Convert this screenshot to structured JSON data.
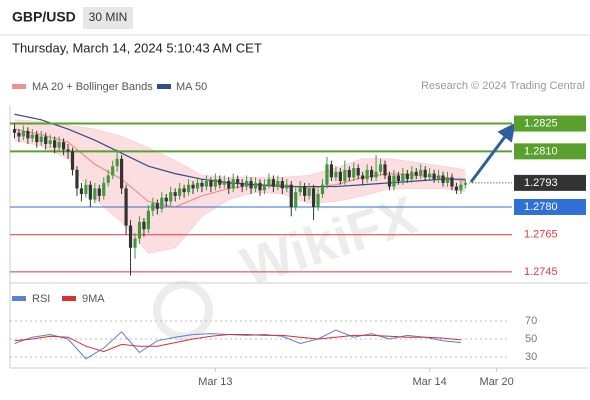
{
  "chart_data": {
    "type": "candlestick",
    "title": "GBP/USD",
    "timeframe": "30 MIN",
    "timestamp": "Thursday, March 14, 2024 5:10:43 AM CET",
    "source": "Research © 2024 Trading Central",
    "watermark": "WikiFX",
    "up_color": "#3d9a3d",
    "down_color": "#333333",
    "xlim": [
      -1,
      111
    ],
    "xticks": [
      {
        "value": 45,
        "label": "Mar 13"
      },
      {
        "value": 93,
        "label": "Mar 14"
      },
      {
        "value": 108,
        "label": "Mar 20"
      }
    ],
    "ylim": [
      1.2739,
      1.2835
    ],
    "x": [
      0,
      1,
      2,
      3,
      4,
      5,
      6,
      7,
      8,
      9,
      10,
      11,
      12,
      13,
      14,
      15,
      16,
      17,
      18,
      19,
      20,
      21,
      22,
      23,
      24,
      25,
      26,
      27,
      28,
      29,
      30,
      31,
      32,
      33,
      34,
      35,
      36,
      37,
      38,
      39,
      40,
      41,
      42,
      43,
      44,
      45,
      46,
      47,
      48,
      49,
      50,
      51,
      52,
      53,
      54,
      55,
      56,
      57,
      58,
      59,
      60,
      61,
      62,
      63,
      64,
      65,
      66,
      67,
      68,
      69,
      70,
      71,
      72,
      73,
      74,
      75,
      76,
      77,
      78,
      79,
      80,
      81,
      82,
      83,
      84,
      85,
      86,
      87,
      88,
      89,
      90,
      91,
      92,
      93,
      94,
      95,
      96,
      97,
      98,
      99,
      100,
      101
    ],
    "ohlc": [
      [
        1.2822,
        1.2825,
        1.2817,
        1.282
      ],
      [
        1.282,
        1.2822,
        1.2815,
        1.2818
      ],
      [
        1.2818,
        1.2824,
        1.2816,
        1.2821
      ],
      [
        1.2821,
        1.2823,
        1.2814,
        1.2817
      ],
      [
        1.2817,
        1.2822,
        1.2815,
        1.2819
      ],
      [
        1.2819,
        1.2821,
        1.2812,
        1.2815
      ],
      [
        1.2815,
        1.2821,
        1.2813,
        1.2818
      ],
      [
        1.2818,
        1.282,
        1.2811,
        1.2814
      ],
      [
        1.2814,
        1.2819,
        1.2812,
        1.2816
      ],
      [
        1.2816,
        1.2818,
        1.2809,
        1.2812
      ],
      [
        1.2812,
        1.2818,
        1.281,
        1.2815
      ],
      [
        1.2815,
        1.2817,
        1.2808,
        1.2811
      ],
      [
        1.2811,
        1.2814,
        1.2806,
        1.281
      ],
      [
        1.281,
        1.2812,
        1.2797,
        1.28
      ],
      [
        1.28,
        1.2802,
        1.2786,
        1.279
      ],
      [
        1.279,
        1.2793,
        1.2783,
        1.2787
      ],
      [
        1.2787,
        1.2795,
        1.2785,
        1.2792
      ],
      [
        1.2792,
        1.2794,
        1.278,
        1.2784
      ],
      [
        1.2784,
        1.2793,
        1.2782,
        1.279
      ],
      [
        1.279,
        1.2792,
        1.2783,
        1.2786
      ],
      [
        1.2786,
        1.2796,
        1.2784,
        1.2793
      ],
      [
        1.2793,
        1.28,
        1.2791,
        1.2797
      ],
      [
        1.2797,
        1.2805,
        1.2795,
        1.2802
      ],
      [
        1.2802,
        1.2811,
        1.2799,
        1.2806
      ],
      [
        1.2806,
        1.2808,
        1.2787,
        1.279
      ],
      [
        1.279,
        1.2792,
        1.2765,
        1.277
      ],
      [
        1.277,
        1.2773,
        1.2743,
        1.2758
      ],
      [
        1.2758,
        1.2766,
        1.2752,
        1.2763
      ],
      [
        1.2763,
        1.2775,
        1.276,
        1.2772
      ],
      [
        1.2772,
        1.2774,
        1.2764,
        1.2768
      ],
      [
        1.2768,
        1.2781,
        1.2766,
        1.2778
      ],
      [
        1.2778,
        1.2785,
        1.2775,
        1.2782
      ],
      [
        1.2782,
        1.2784,
        1.2776,
        1.2779
      ],
      [
        1.2779,
        1.2788,
        1.2777,
        1.2785
      ],
      [
        1.2785,
        1.2787,
        1.278,
        1.2783
      ],
      [
        1.2783,
        1.2791,
        1.2781,
        1.2788
      ],
      [
        1.2788,
        1.279,
        1.2783,
        1.2786
      ],
      [
        1.2786,
        1.2793,
        1.2784,
        1.279
      ],
      [
        1.279,
        1.2792,
        1.2785,
        1.2788
      ],
      [
        1.2788,
        1.2795,
        1.2786,
        1.2792
      ],
      [
        1.2792,
        1.2794,
        1.2787,
        1.279
      ],
      [
        1.279,
        1.2796,
        1.2788,
        1.2793
      ],
      [
        1.2793,
        1.2795,
        1.2788,
        1.2791
      ],
      [
        1.2791,
        1.2797,
        1.2789,
        1.2794
      ],
      [
        1.2794,
        1.2796,
        1.2788,
        1.2791
      ],
      [
        1.2791,
        1.2798,
        1.2789,
        1.2795
      ],
      [
        1.2795,
        1.2797,
        1.279,
        1.2792
      ],
      [
        1.2792,
        1.2797,
        1.279,
        1.2794
      ],
      [
        1.2794,
        1.2796,
        1.2787,
        1.279
      ],
      [
        1.279,
        1.2798,
        1.2788,
        1.2795
      ],
      [
        1.2795,
        1.2797,
        1.279,
        1.2793
      ],
      [
        1.2793,
        1.2795,
        1.2788,
        1.2791
      ],
      [
        1.2791,
        1.2797,
        1.2789,
        1.2794
      ],
      [
        1.2794,
        1.2796,
        1.2787,
        1.279
      ],
      [
        1.279,
        1.2796,
        1.2788,
        1.2793
      ],
      [
        1.2793,
        1.2795,
        1.2786,
        1.2789
      ],
      [
        1.2789,
        1.2795,
        1.2787,
        1.2792
      ],
      [
        1.2792,
        1.2798,
        1.279,
        1.2795
      ],
      [
        1.2795,
        1.2797,
        1.2788,
        1.2791
      ],
      [
        1.2791,
        1.2797,
        1.2789,
        1.2794
      ],
      [
        1.2794,
        1.2796,
        1.2787,
        1.279
      ],
      [
        1.279,
        1.2795,
        1.2788,
        1.2792
      ],
      [
        1.2792,
        1.2794,
        1.2775,
        1.278
      ],
      [
        1.278,
        1.2791,
        1.2778,
        1.2788
      ],
      [
        1.2788,
        1.2794,
        1.2786,
        1.2791
      ],
      [
        1.2791,
        1.2793,
        1.2783,
        1.2786
      ],
      [
        1.2786,
        1.2793,
        1.2784,
        1.279
      ],
      [
        1.279,
        1.2792,
        1.2773,
        1.278
      ],
      [
        1.278,
        1.279,
        1.2778,
        1.2787
      ],
      [
        1.2787,
        1.2795,
        1.2785,
        1.2792
      ],
      [
        1.2792,
        1.2807,
        1.279,
        1.2803
      ],
      [
        1.2803,
        1.2805,
        1.2794,
        1.2796
      ],
      [
        1.2796,
        1.2802,
        1.2794,
        1.2799
      ],
      [
        1.2799,
        1.2801,
        1.2792,
        1.2794
      ],
      [
        1.2794,
        1.2805,
        1.2792,
        1.28
      ],
      [
        1.28,
        1.2802,
        1.2794,
        1.2796
      ],
      [
        1.2796,
        1.2804,
        1.2794,
        1.2801
      ],
      [
        1.2801,
        1.2803,
        1.2795,
        1.2797
      ],
      [
        1.2797,
        1.2799,
        1.2792,
        1.2795
      ],
      [
        1.2795,
        1.2803,
        1.2793,
        1.28
      ],
      [
        1.28,
        1.2802,
        1.2794,
        1.2796
      ],
      [
        1.2796,
        1.2808,
        1.2794,
        1.2799
      ],
      [
        1.2799,
        1.2806,
        1.2797,
        1.2803
      ],
      [
        1.2803,
        1.2805,
        1.2795,
        1.2797
      ],
      [
        1.2797,
        1.2799,
        1.2789,
        1.2791
      ],
      [
        1.2791,
        1.28,
        1.2789,
        1.2797
      ],
      [
        1.2797,
        1.2799,
        1.2792,
        1.2794
      ],
      [
        1.2794,
        1.2801,
        1.2792,
        1.2798
      ],
      [
        1.2798,
        1.28,
        1.2793,
        1.2795
      ],
      [
        1.2795,
        1.2802,
        1.2793,
        1.2799
      ],
      [
        1.2799,
        1.2801,
        1.2795,
        1.2797
      ],
      [
        1.2797,
        1.2803,
        1.2795,
        1.28
      ],
      [
        1.28,
        1.2802,
        1.2794,
        1.2796
      ],
      [
        1.2796,
        1.2801,
        1.2794,
        1.2798
      ],
      [
        1.2798,
        1.28,
        1.2793,
        1.2795
      ],
      [
        1.2795,
        1.28,
        1.2793,
        1.2797
      ],
      [
        1.2797,
        1.2799,
        1.2791,
        1.2793
      ],
      [
        1.2793,
        1.2799,
        1.2791,
        1.2796
      ],
      [
        1.2796,
        1.2798,
        1.2789,
        1.2791
      ],
      [
        1.2791,
        1.2793,
        1.2787,
        1.2789
      ],
      [
        1.2789,
        1.2794,
        1.2787,
        1.2792
      ],
      [
        1.2792,
        1.2795,
        1.279,
        1.2793
      ]
    ],
    "overlays": [
      {
        "name": "MA 20 + Bollinger Bands",
        "color": "#ef8f8f",
        "band_color": "#fbd3d6",
        "x": [
          0,
          6,
          12,
          18,
          24,
          30,
          36,
          42,
          48,
          54,
          60,
          66,
          72,
          78,
          84,
          90,
          96,
          101
        ],
        "values": [
          1.2822,
          1.2819,
          1.2815,
          1.2803,
          1.2795,
          1.2783,
          1.278,
          1.2786,
          1.279,
          1.2792,
          1.2792,
          1.279,
          1.2792,
          1.2796,
          1.2798,
          1.2797,
          1.2796,
          1.2794
        ],
        "upper": [
          1.2827,
          1.2826,
          1.2824,
          1.2822,
          1.2818,
          1.2812,
          1.2805,
          1.2797,
          1.2796,
          1.2796,
          1.2796,
          1.2797,
          1.2801,
          1.2806,
          1.2806,
          1.2804,
          1.2802,
          1.28
        ],
        "lower": [
          1.2816,
          1.2813,
          1.2806,
          1.2784,
          1.2772,
          1.2755,
          1.2758,
          1.2775,
          1.2784,
          1.2788,
          1.2787,
          1.2782,
          1.2783,
          1.2786,
          1.279,
          1.279,
          1.279,
          1.2788
        ]
      },
      {
        "name": "MA 50",
        "color": "#2f4f86",
        "x": [
          0,
          6,
          12,
          18,
          24,
          30,
          36,
          42,
          48,
          54,
          60,
          66,
          72,
          78,
          84,
          90,
          96,
          101
        ],
        "values": [
          1.283,
          1.2827,
          1.2822,
          1.2816,
          1.2809,
          1.2802,
          1.2798,
          1.2795,
          1.2793,
          1.2792,
          1.2791,
          1.2791,
          1.2791,
          1.2792,
          1.2793,
          1.2794,
          1.2795,
          1.2795
        ]
      }
    ],
    "levels": [
      {
        "value": 1.2825,
        "label": "1.2825",
        "color": "#5aa02c",
        "style": "box"
      },
      {
        "value": 1.281,
        "label": "1.2810",
        "color": "#5aa02c",
        "style": "box"
      },
      {
        "value": 1.2793,
        "label": "1.2793",
        "color": "#333333",
        "style": "current"
      },
      {
        "value": 1.278,
        "label": "1.2780",
        "color": "#2f6fd6",
        "style": "box"
      },
      {
        "value": 1.2765,
        "label": "1.2765",
        "color": "#e03a3a",
        "style": "text"
      },
      {
        "value": 1.2745,
        "label": "1.2745",
        "color": "#e03a3a",
        "style": "text"
      }
    ],
    "rsi": {
      "ylim": [
        20,
        100
      ],
      "yticks": [
        30,
        50,
        70
      ],
      "series": [
        {
          "name": "RSI",
          "color": "#5b7fd6",
          "x": [
            0,
            4,
            8,
            12,
            16,
            20,
            24,
            28,
            32,
            36,
            40,
            44,
            48,
            52,
            56,
            60,
            64,
            68,
            72,
            76,
            80,
            84,
            88,
            92,
            96,
            100
          ],
          "values": [
            45,
            52,
            55,
            50,
            28,
            40,
            58,
            35,
            48,
            52,
            55,
            56,
            55,
            54,
            55,
            53,
            45,
            50,
            60,
            52,
            56,
            50,
            54,
            52,
            48,
            46
          ]
        },
        {
          "name": "9MA",
          "color": "#d93030",
          "x": [
            0,
            4,
            8,
            12,
            16,
            20,
            24,
            28,
            32,
            36,
            40,
            44,
            48,
            52,
            56,
            60,
            64,
            68,
            72,
            76,
            80,
            84,
            88,
            92,
            96,
            100
          ],
          "values": [
            48,
            50,
            53,
            52,
            42,
            36,
            44,
            42,
            42,
            46,
            50,
            53,
            55,
            55,
            54,
            54,
            52,
            50,
            52,
            54,
            54,
            53,
            52,
            52,
            51,
            49
          ]
        }
      ]
    }
  }
}
